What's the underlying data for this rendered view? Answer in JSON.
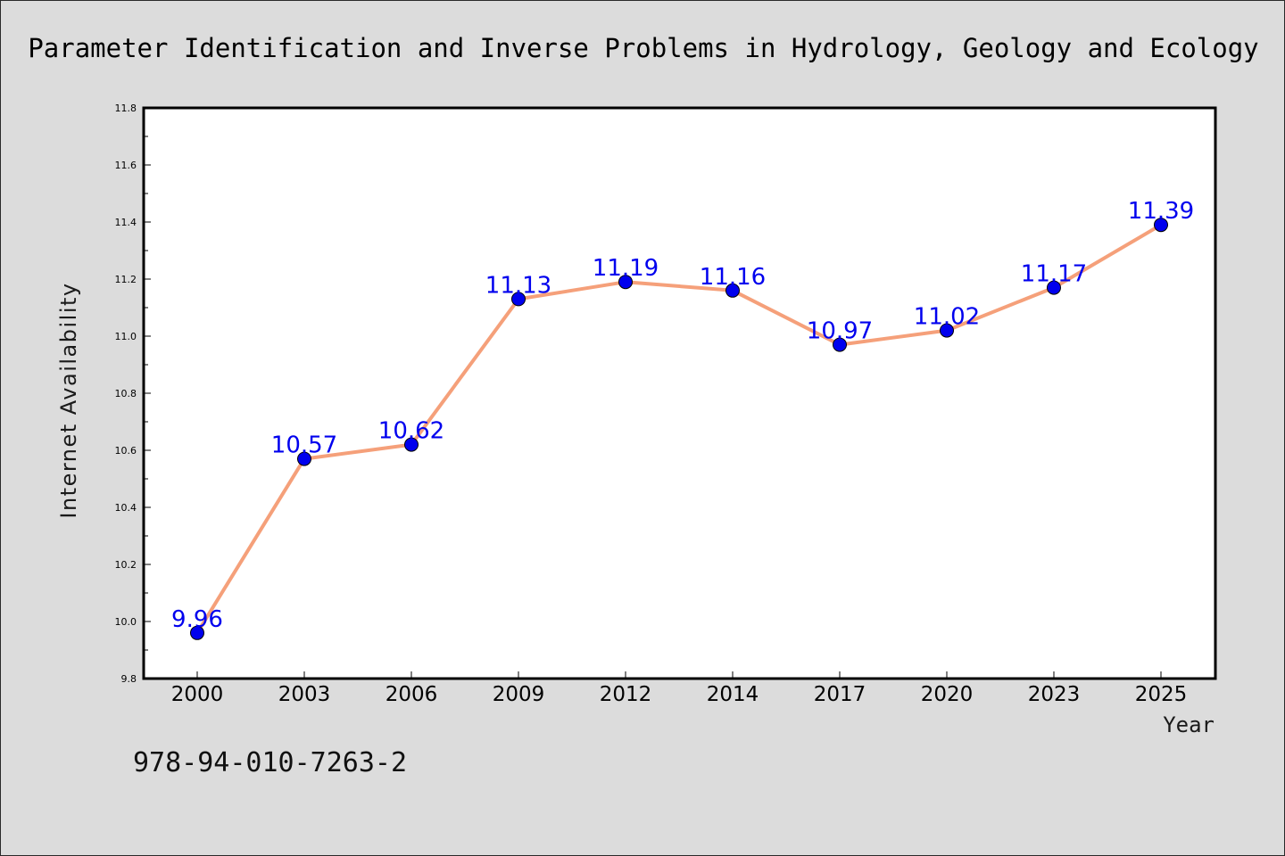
{
  "chart_data": {
    "type": "line",
    "title": "Parameter Identification and Inverse Problems in Hydrology, Geology and Ecology",
    "xlabel": "Year",
    "ylabel": "Internet Availability",
    "categories": [
      "2000",
      "2003",
      "2006",
      "2009",
      "2012",
      "2014",
      "2017",
      "2020",
      "2023",
      "2025"
    ],
    "series": [
      {
        "values": [
          9.96,
          10.57,
          10.62,
          11.13,
          11.19,
          11.16,
          10.97,
          11.02,
          11.17,
          11.39
        ]
      }
    ],
    "data_labels": [
      "9.96",
      "10.57",
      "10.62",
      "11.13",
      "11.19",
      "11.16",
      "10.97",
      "11.02",
      "11.17",
      "11.39"
    ],
    "ylim": [
      9.8,
      11.8
    ],
    "yticks": [
      "9.8",
      "10.0",
      "10.2",
      "10.4",
      "10.6",
      "10.8",
      "11.0",
      "11.2",
      "11.4",
      "11.6",
      "11.8"
    ],
    "grid": false,
    "legend": "none",
    "annotation": "978-94-010-7263-2",
    "colors": {
      "line": "#f5a07a",
      "marker": "#0000ee",
      "label": "#0000ee",
      "background": "#dcdcdc",
      "plot_background": "#ffffff"
    }
  }
}
